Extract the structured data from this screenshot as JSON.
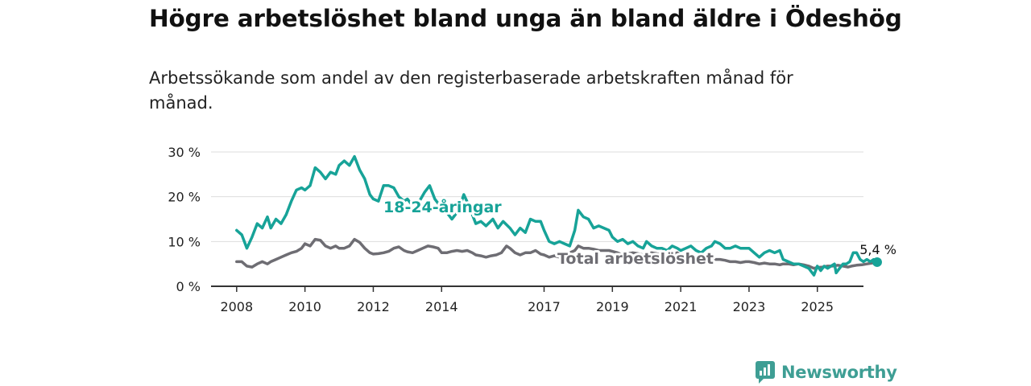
{
  "title": "Högre arbetslöshet bland unga än bland äldre i Ödeshög",
  "subtitle": "Arbetssökande som andel av den registerbaserade arbetskraften månad för månad.",
  "logo": {
    "text": "Newsworthy",
    "icon": "newsworthy-logo-icon"
  },
  "colors": {
    "youth": "#17a398",
    "total": "#6e6d73",
    "grid": "#dddddd",
    "axis": "#333333"
  },
  "chart_data": {
    "type": "line",
    "title": "Högre arbetslöshet bland unga än bland äldre i Ödeshög",
    "subtitle": "Arbetssökande som andel av den registerbaserade arbetskraften månad för månad.",
    "x_ticks": [
      2008,
      2010,
      2012,
      2014,
      2017,
      2019,
      2021,
      2023,
      2025
    ],
    "y_ticks": [
      {
        "v": 0,
        "label": "0 %"
      },
      {
        "v": 10,
        "label": "10 %"
      },
      {
        "v": 20,
        "label": "20 %"
      },
      {
        "v": 30,
        "label": "30 %"
      }
    ],
    "xlim": [
      2007.25,
      2026.35
    ],
    "ylim": [
      0,
      30
    ],
    "grid": true,
    "end_label": "5,4 %",
    "series": [
      {
        "name": "18-24-åringar",
        "color_key": "youth",
        "points": [
          [
            2008.0,
            12.5
          ],
          [
            2008.15,
            11.5
          ],
          [
            2008.3,
            8.5
          ],
          [
            2008.45,
            11
          ],
          [
            2008.6,
            14
          ],
          [
            2008.75,
            13
          ],
          [
            2008.9,
            15.5
          ],
          [
            2009.0,
            13
          ],
          [
            2009.15,
            15
          ],
          [
            2009.3,
            14
          ],
          [
            2009.45,
            16
          ],
          [
            2009.6,
            19
          ],
          [
            2009.75,
            21.5
          ],
          [
            2009.9,
            22
          ],
          [
            2010.0,
            21.5
          ],
          [
            2010.15,
            22.5
          ],
          [
            2010.3,
            26.5
          ],
          [
            2010.45,
            25.5
          ],
          [
            2010.6,
            24
          ],
          [
            2010.75,
            25.5
          ],
          [
            2010.9,
            25
          ],
          [
            2011.0,
            27
          ],
          [
            2011.15,
            28
          ],
          [
            2011.3,
            27
          ],
          [
            2011.45,
            29
          ],
          [
            2011.6,
            26
          ],
          [
            2011.75,
            24
          ],
          [
            2011.9,
            20.5
          ],
          [
            2012.0,
            19.5
          ],
          [
            2012.15,
            19
          ],
          [
            2012.3,
            22.5
          ],
          [
            2012.45,
            22.5
          ],
          [
            2012.6,
            22
          ],
          [
            2012.75,
            20
          ],
          [
            2012.9,
            19
          ],
          [
            2013.0,
            19.5
          ],
          [
            2013.2,
            17.5
          ],
          [
            2013.35,
            19
          ],
          [
            2013.5,
            21
          ],
          [
            2013.65,
            22.5
          ],
          [
            2013.8,
            19.5
          ],
          [
            2014.0,
            17.5
          ],
          [
            2014.15,
            16.5
          ],
          [
            2014.3,
            15
          ],
          [
            2014.5,
            17
          ],
          [
            2014.65,
            20.5
          ],
          [
            2014.8,
            18
          ],
          [
            2015.0,
            14
          ],
          [
            2015.15,
            14.5
          ],
          [
            2015.3,
            13.5
          ],
          [
            2015.5,
            15
          ],
          [
            2015.65,
            13
          ],
          [
            2015.8,
            14.5
          ],
          [
            2016.0,
            13
          ],
          [
            2016.15,
            11.5
          ],
          [
            2016.3,
            13
          ],
          [
            2016.45,
            12
          ],
          [
            2016.6,
            15
          ],
          [
            2016.75,
            14.5
          ],
          [
            2016.9,
            14.5
          ],
          [
            2017.0,
            12.5
          ],
          [
            2017.15,
            10
          ],
          [
            2017.3,
            9.5
          ],
          [
            2017.45,
            10
          ],
          [
            2017.6,
            9.5
          ],
          [
            2017.75,
            9
          ],
          [
            2017.9,
            12.5
          ],
          [
            2018.0,
            17
          ],
          [
            2018.15,
            15.5
          ],
          [
            2018.3,
            15
          ],
          [
            2018.45,
            13
          ],
          [
            2018.6,
            13.5
          ],
          [
            2018.75,
            13
          ],
          [
            2018.9,
            12.5
          ],
          [
            2019.0,
            11
          ],
          [
            2019.15,
            10
          ],
          [
            2019.3,
            10.5
          ],
          [
            2019.45,
            9.5
          ],
          [
            2019.6,
            10
          ],
          [
            2019.75,
            9
          ],
          [
            2019.9,
            8.5
          ],
          [
            2020.0,
            10
          ],
          [
            2020.15,
            9
          ],
          [
            2020.3,
            8.5
          ],
          [
            2020.45,
            8.5
          ],
          [
            2020.6,
            8
          ],
          [
            2020.75,
            9
          ],
          [
            2020.9,
            8.5
          ],
          [
            2021.0,
            8
          ],
          [
            2021.15,
            8.5
          ],
          [
            2021.3,
            9
          ],
          [
            2021.45,
            8
          ],
          [
            2021.6,
            7.5
          ],
          [
            2021.75,
            8.5
          ],
          [
            2021.9,
            9
          ],
          [
            2022.0,
            10
          ],
          [
            2022.15,
            9.5
          ],
          [
            2022.3,
            8.5
          ],
          [
            2022.45,
            8.5
          ],
          [
            2022.6,
            9
          ],
          [
            2022.75,
            8.5
          ],
          [
            2022.9,
            8.5
          ],
          [
            2023.0,
            8.5
          ],
          [
            2023.15,
            7.5
          ],
          [
            2023.3,
            6.5
          ],
          [
            2023.45,
            7.5
          ],
          [
            2023.6,
            8
          ],
          [
            2023.75,
            7.5
          ],
          [
            2023.9,
            8
          ],
          [
            2024.0,
            6
          ],
          [
            2024.15,
            5.5
          ],
          [
            2024.3,
            5
          ],
          [
            2024.45,
            5
          ],
          [
            2024.6,
            4.5
          ],
          [
            2024.75,
            4
          ],
          [
            2024.9,
            2.5
          ],
          [
            2025.0,
            4.5
          ],
          [
            2025.1,
            3.5
          ],
          [
            2025.2,
            4.5
          ],
          [
            2025.3,
            4
          ],
          [
            2025.4,
            4.5
          ],
          [
            2025.5,
            5
          ],
          [
            2025.55,
            3
          ],
          [
            2025.65,
            4
          ],
          [
            2025.75,
            5
          ],
          [
            2025.85,
            5
          ],
          [
            2025.95,
            5.5
          ],
          [
            2026.05,
            7.5
          ],
          [
            2026.15,
            7.5
          ],
          [
            2026.25,
            6
          ],
          [
            2026.35,
            5.5
          ],
          [
            2026.45,
            6
          ],
          [
            2026.55,
            5.5
          ],
          [
            2026.65,
            6
          ],
          [
            2026.75,
            5.4
          ]
        ]
      },
      {
        "name": "Total arbetslöshet",
        "color_key": "total",
        "points": [
          [
            2008.0,
            5.5
          ],
          [
            2008.15,
            5.5
          ],
          [
            2008.3,
            4.5
          ],
          [
            2008.45,
            4.3
          ],
          [
            2008.6,
            5
          ],
          [
            2008.75,
            5.5
          ],
          [
            2008.9,
            5
          ],
          [
            2009.0,
            5.5
          ],
          [
            2009.15,
            6
          ],
          [
            2009.3,
            6.5
          ],
          [
            2009.45,
            7
          ],
          [
            2009.6,
            7.5
          ],
          [
            2009.75,
            7.8
          ],
          [
            2009.9,
            8.5
          ],
          [
            2010.0,
            9.5
          ],
          [
            2010.15,
            9
          ],
          [
            2010.3,
            10.5
          ],
          [
            2010.45,
            10.3
          ],
          [
            2010.6,
            9
          ],
          [
            2010.75,
            8.5
          ],
          [
            2010.9,
            9
          ],
          [
            2011.0,
            8.5
          ],
          [
            2011.15,
            8.5
          ],
          [
            2011.3,
            9
          ],
          [
            2011.45,
            10.5
          ],
          [
            2011.6,
            9.8
          ],
          [
            2011.75,
            8.5
          ],
          [
            2011.9,
            7.5
          ],
          [
            2012.0,
            7.2
          ],
          [
            2012.15,
            7.3
          ],
          [
            2012.3,
            7.5
          ],
          [
            2012.45,
            7.8
          ],
          [
            2012.6,
            8.5
          ],
          [
            2012.75,
            8.8
          ],
          [
            2012.9,
            8
          ],
          [
            2013.0,
            7.7
          ],
          [
            2013.15,
            7.5
          ],
          [
            2013.3,
            8
          ],
          [
            2013.45,
            8.5
          ],
          [
            2013.6,
            9
          ],
          [
            2013.75,
            8.8
          ],
          [
            2013.9,
            8.5
          ],
          [
            2014.0,
            7.5
          ],
          [
            2014.15,
            7.5
          ],
          [
            2014.3,
            7.8
          ],
          [
            2014.45,
            8
          ],
          [
            2014.6,
            7.8
          ],
          [
            2014.75,
            8
          ],
          [
            2014.9,
            7.5
          ],
          [
            2015.0,
            7
          ],
          [
            2015.15,
            6.8
          ],
          [
            2015.3,
            6.5
          ],
          [
            2015.45,
            6.8
          ],
          [
            2015.6,
            7
          ],
          [
            2015.75,
            7.5
          ],
          [
            2015.9,
            9
          ],
          [
            2016.0,
            8.5
          ],
          [
            2016.15,
            7.5
          ],
          [
            2016.3,
            7
          ],
          [
            2016.45,
            7.5
          ],
          [
            2016.6,
            7.5
          ],
          [
            2016.75,
            8
          ],
          [
            2016.9,
            7.2
          ],
          [
            2017.0,
            7
          ],
          [
            2017.15,
            6.5
          ],
          [
            2017.3,
            6.8
          ],
          [
            2017.45,
            6.5
          ],
          [
            2017.6,
            6.5
          ],
          [
            2017.75,
            7.5
          ],
          [
            2017.9,
            8
          ],
          [
            2018.0,
            9
          ],
          [
            2018.15,
            8.5
          ],
          [
            2018.3,
            8.5
          ],
          [
            2018.45,
            8.3
          ],
          [
            2018.6,
            8
          ],
          [
            2018.75,
            8
          ],
          [
            2018.9,
            8
          ],
          [
            2019.0,
            7.8
          ],
          [
            2019.15,
            7.5
          ],
          [
            2019.3,
            7
          ],
          [
            2019.45,
            7.3
          ],
          [
            2019.6,
            7.5
          ],
          [
            2019.75,
            7.3
          ],
          [
            2019.9,
            7
          ],
          [
            2020.0,
            7.2
          ],
          [
            2020.15,
            7.5
          ],
          [
            2020.3,
            7.3
          ],
          [
            2020.45,
            7
          ],
          [
            2020.6,
            7
          ],
          [
            2020.75,
            7.2
          ],
          [
            2020.9,
            7.5
          ],
          [
            2021.0,
            7
          ],
          [
            2021.15,
            7
          ],
          [
            2021.3,
            6.8
          ],
          [
            2021.45,
            6.5
          ],
          [
            2021.6,
            6.5
          ],
          [
            2021.75,
            6.5
          ],
          [
            2021.9,
            6.3
          ],
          [
            2022.0,
            6
          ],
          [
            2022.15,
            6
          ],
          [
            2022.3,
            5.8
          ],
          [
            2022.45,
            5.5
          ],
          [
            2022.6,
            5.5
          ],
          [
            2022.75,
            5.3
          ],
          [
            2022.9,
            5.5
          ],
          [
            2023.0,
            5.5
          ],
          [
            2023.15,
            5.3
          ],
          [
            2023.3,
            5
          ],
          [
            2023.45,
            5.2
          ],
          [
            2023.6,
            5
          ],
          [
            2023.75,
            5
          ],
          [
            2023.9,
            4.8
          ],
          [
            2024.0,
            5
          ],
          [
            2024.15,
            5
          ],
          [
            2024.3,
            4.8
          ],
          [
            2024.45,
            5
          ],
          [
            2024.6,
            4.8
          ],
          [
            2024.75,
            4.5
          ],
          [
            2024.9,
            4
          ],
          [
            2025.0,
            4.2
          ],
          [
            2025.15,
            4.3
          ],
          [
            2025.3,
            4.5
          ],
          [
            2025.45,
            4.5
          ],
          [
            2025.6,
            4.7
          ],
          [
            2025.75,
            4.5
          ],
          [
            2025.9,
            4.3
          ],
          [
            2026.0,
            4.5
          ],
          [
            2026.15,
            4.7
          ],
          [
            2026.3,
            4.8
          ],
          [
            2026.45,
            5
          ],
          [
            2026.6,
            5.2
          ],
          [
            2026.75,
            5.4
          ]
        ]
      }
    ]
  }
}
